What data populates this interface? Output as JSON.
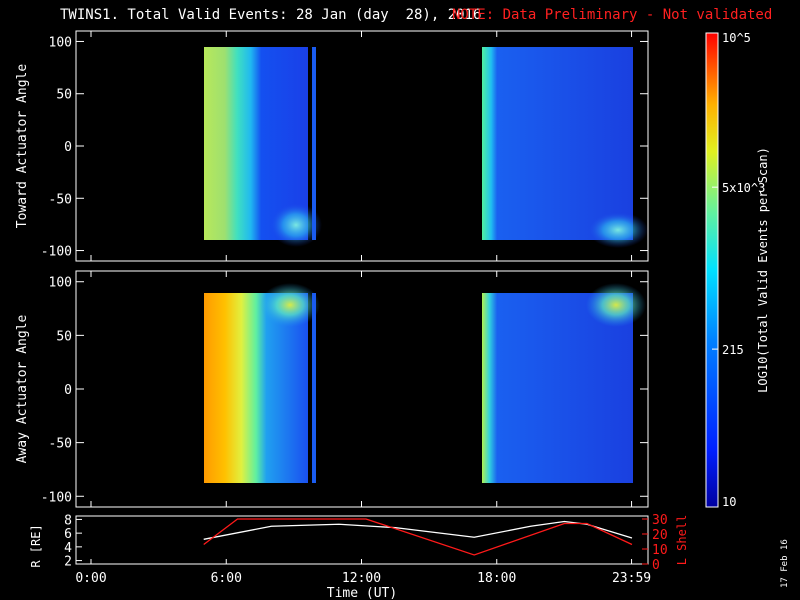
{
  "title": {
    "main": "TWINS1. Total Valid Events: 28 Jan (day  28), 2016",
    "note": "NOTE: Data Preliminary - Not validated",
    "note_color": "#ff2020"
  },
  "side_date": "17 Feb 16",
  "colors": {
    "axis": "#ffffff",
    "red_series": "#ff1a1a",
    "white_series": "#ffffff"
  },
  "chart_data": [
    {
      "type": "heatmap",
      "name": "toward-panel",
      "ylabel": "Toward Actuator Angle",
      "y_ticks": [
        "100",
        "50",
        "0",
        "-50",
        "-100"
      ],
      "y_tick_values": [
        100,
        50,
        0,
        -50,
        -100
      ],
      "ylim": [
        -110,
        110
      ],
      "xlim_hours": [
        0,
        24
      ],
      "data_windows_hours": [
        [
          5.0,
          9.7
        ],
        [
          9.9,
          10.0
        ],
        [
          17.0,
          24.0
        ]
      ],
      "data_y_range": [
        -88,
        90
      ]
    },
    {
      "type": "heatmap",
      "name": "away-panel",
      "ylabel": "Away Actuator Angle",
      "y_ticks": [
        "100",
        "50",
        "0",
        "-50",
        "-100"
      ],
      "y_tick_values": [
        100,
        50,
        0,
        -50,
        -100
      ],
      "ylim": [
        -110,
        110
      ],
      "xlim_hours": [
        0,
        24
      ],
      "data_windows_hours": [
        [
          5.0,
          9.7
        ],
        [
          9.9,
          10.0
        ],
        [
          17.0,
          24.0
        ]
      ],
      "data_y_range": [
        -88,
        90
      ]
    },
    {
      "type": "line",
      "name": "orbit-panel",
      "ylabel_left": "R [RE]",
      "ylabel_right": "L Shell",
      "left_ticks": [
        "8",
        "6",
        "4",
        "2"
      ],
      "left_tick_values": [
        8,
        6,
        4,
        2
      ],
      "right_ticks": [
        "30",
        "20",
        "10",
        "0"
      ],
      "right_tick_values": [
        30,
        20,
        10,
        0
      ],
      "ylim_left": [
        1.5,
        8.5
      ],
      "ylim_right": [
        0,
        32
      ],
      "xlabel": "Time (UT)",
      "x_ticks": [
        "0:00",
        "6:00",
        "12:00",
        "18:00",
        "23:59"
      ],
      "x_tick_values": [
        0,
        6,
        12,
        18,
        23.98
      ],
      "series": [
        {
          "color": "white",
          "x": [
            5.0,
            8.0,
            11.0,
            13.5,
            17.0,
            19.5,
            21.0,
            22.0,
            24.0
          ],
          "y": [
            5.1,
            7.0,
            7.3,
            6.8,
            5.4,
            7.0,
            7.7,
            7.3,
            5.3
          ]
        },
        {
          "color": "red",
          "axis": "right",
          "x": [
            5.0,
            6.5,
            12.2,
            17.0,
            21.0,
            22.0,
            24.0
          ],
          "y": [
            13,
            30,
            30,
            6,
            27,
            27,
            13
          ]
        }
      ]
    }
  ],
  "colorbar": {
    "label": "LOG10(Total Valid Events per Scan)",
    "ticks": [
      "10^5",
      "5x10^3",
      "215",
      "10"
    ],
    "tick_values": [
      100000,
      5000,
      215,
      10
    ],
    "range": [
      10,
      100000
    ],
    "scale": "log"
  }
}
